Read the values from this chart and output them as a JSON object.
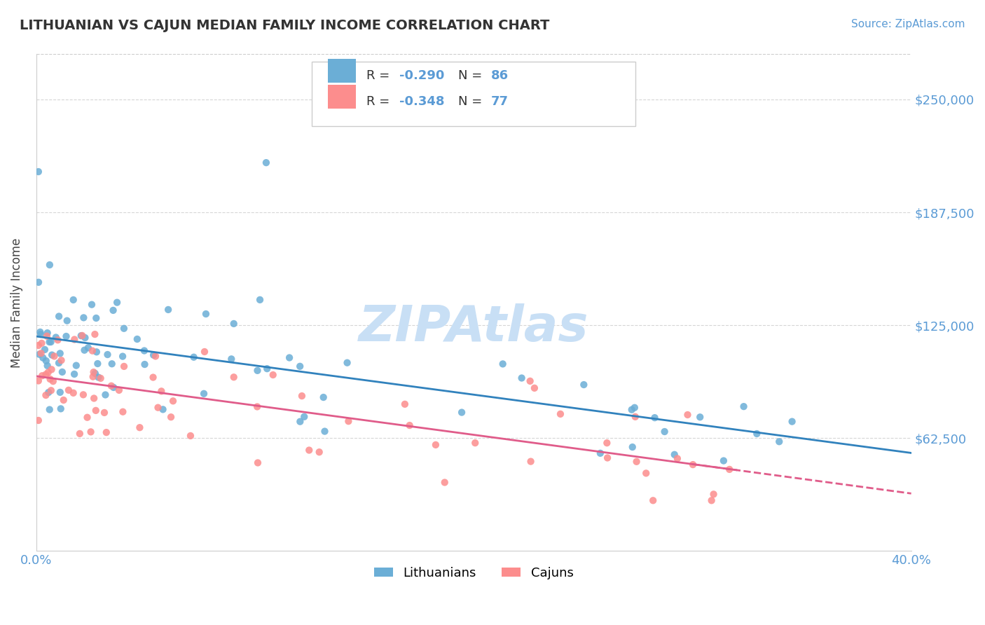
{
  "title": "LITHUANIAN VS CAJUN MEDIAN FAMILY INCOME CORRELATION CHART",
  "source_text": "Source: ZipAtlas.com",
  "ylabel": "Median Family Income",
  "xlim": [
    0.0,
    0.4
  ],
  "ylim": [
    0,
    275000
  ],
  "yticks": [
    62500,
    125000,
    187500,
    250000
  ],
  "ytick_labels": [
    "$62,500",
    "$125,000",
    "$187,500",
    "$250,000"
  ],
  "legend_labels": [
    "Lithuanians",
    "Cajuns"
  ],
  "legend_r": [
    -0.29,
    -0.348
  ],
  "legend_n": [
    86,
    77
  ],
  "blue_color": "#6baed6",
  "pink_color": "#fc8d8d",
  "trend_blue": "#3182bd",
  "trend_pink": "#e05c8a",
  "watermark": "ZIPAtlas",
  "watermark_color": "#c8dff5",
  "grid_color": "#cccccc",
  "background_color": "#ffffff",
  "label_color": "#5b9bd5"
}
